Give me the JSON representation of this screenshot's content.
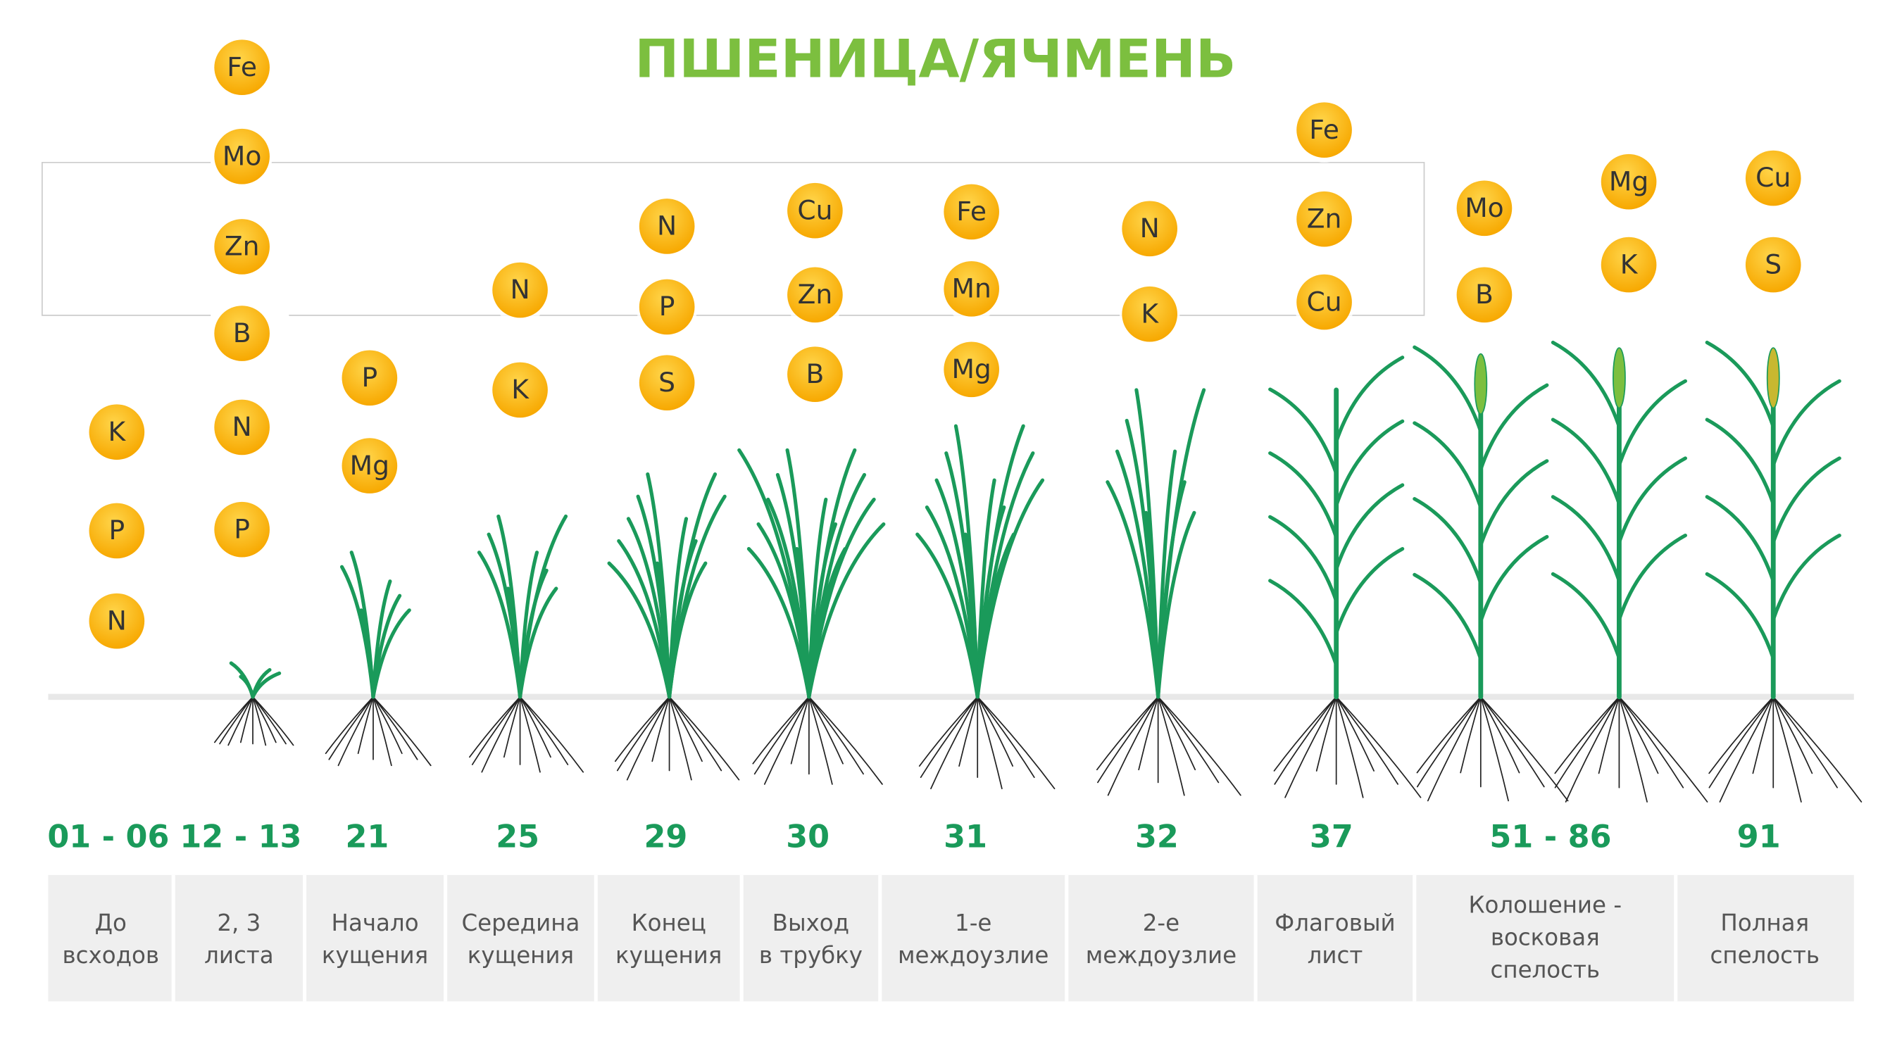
{
  "title": "ПШЕНИЦА/ЯЧМЕНЬ",
  "stages": [
    {
      "code": "01 - 06",
      "label": [
        "До",
        "всходов"
      ],
      "elements": [
        "K",
        "P",
        "N"
      ]
    },
    {
      "code": "12 - 13",
      "label": [
        "2, 3",
        "листа"
      ],
      "elements": [
        "Fe",
        "Mo",
        "Zn",
        "B",
        "N",
        "P"
      ]
    },
    {
      "code": "21",
      "label": [
        "Начало",
        "кущения"
      ],
      "elements": [
        "P",
        "Mg"
      ]
    },
    {
      "code": "25",
      "label": [
        "Середина",
        "кущения"
      ],
      "elements": [
        "N",
        "K"
      ]
    },
    {
      "code": "29",
      "label": [
        "Конец",
        "кущения"
      ],
      "elements": [
        "N",
        "P",
        "S"
      ]
    },
    {
      "code": "30",
      "label": [
        "Выход",
        "в трубку"
      ],
      "elements": [
        "Cu",
        "Zn",
        "B"
      ]
    },
    {
      "code": "31",
      "label": [
        "1-е",
        "междоузлие"
      ],
      "elements": [
        "Fe",
        "Mn",
        "Mg"
      ]
    },
    {
      "code": "32",
      "label": [
        "2-е",
        "междоузлие"
      ],
      "elements": [
        "N",
        "K"
      ]
    },
    {
      "code": "37",
      "label": [
        "Флаговый",
        "лист"
      ],
      "elements": [
        "Fe",
        "Zn",
        "Cu"
      ]
    },
    {
      "code": "51 - 86",
      "label": [
        "Колошение -",
        "восковая",
        "спелость"
      ],
      "elements": [
        "Mo",
        "B",
        "Mg",
        "K"
      ]
    },
    {
      "code": "91",
      "label": [
        "Полная",
        "спелость"
      ],
      "elements": [
        "Cu",
        "S"
      ]
    }
  ]
}
